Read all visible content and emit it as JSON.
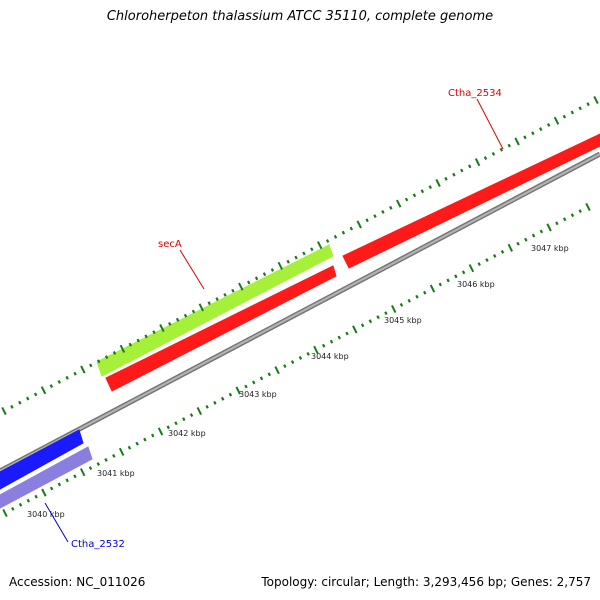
{
  "map": {
    "title": "Chloroherpeton thalassium ATCC 35110, complete genome",
    "accession_label": "Accession: NC_011026",
    "summary_label": "Topology: circular; Length: 3,293,456 bp; Genes: 2,757",
    "colors": {
      "backbone": "#8c8c8c",
      "forward_cds": "#ff1a1a",
      "rna": "#a6f03a",
      "reverse_cds": "#1a1aff",
      "reverse_cds_light": "#8a7fe0",
      "tick": "#1a7a1a",
      "gene_label_red": "#e00000",
      "gene_label_blue": "#0000e0"
    },
    "scale_labels": [
      "3040 kbp",
      "3041 kbp",
      "3042 kbp",
      "3043 kbp",
      "3044 kbp",
      "3045 kbp",
      "3046 kbp",
      "3047 kbp"
    ],
    "gene_labels": [
      {
        "text": "Ctha_2534",
        "color": "gene_label_red"
      },
      {
        "text": "secA",
        "color": "gene_label_red"
      },
      {
        "text": "Ctha_2532",
        "color": "gene_label_blue"
      }
    ]
  }
}
